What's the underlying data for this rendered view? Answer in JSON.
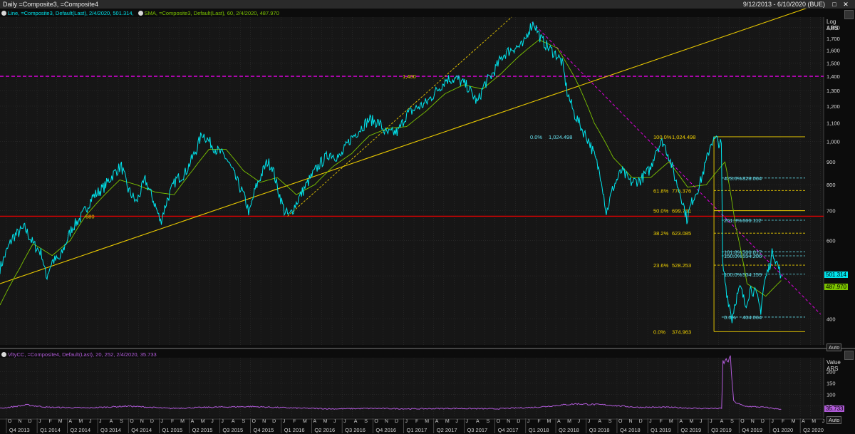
{
  "window": {
    "title": "Daily =Composite3, =Composite4",
    "date_range": "9/12/2013 - 6/10/2020 (BUE)"
  },
  "legend_top": {
    "line": "Line, =Composite3, Default(Last), 2/4/2020, 501.314,",
    "sma": "SMA, =Composite3, Default(Last),  60,  2/4/2020, 487.970"
  },
  "legend_bottom": {
    "vty": "VltyCC, =Composite4, Default(Last), 20, 252, 2/4/2020, 35.733"
  },
  "axes": {
    "top_header": [
      "Log",
      "ARS"
    ],
    "bottom_header": [
      "Value",
      "ARS"
    ],
    "auto_label": "Auto"
  },
  "colors": {
    "price": "#00e5ee",
    "sma": "#7cc400",
    "vty": "#b05ad8",
    "fib": "#f0d000",
    "fib_ext": "#66e0ee",
    "magenta": "#e000e0",
    "red": "#e00000",
    "trend": "#e8c800"
  },
  "chart_data": [
    {
      "type": "line",
      "scale": "log",
      "ylim": [
        350,
        1900
      ],
      "yticks": [
        400,
        500,
        600,
        700,
        800,
        900,
        1000,
        1100,
        1200,
        1300,
        1400,
        1500,
        1600,
        1700,
        1800
      ],
      "ytick_labels": [
        "400",
        "500",
        "600",
        "700",
        "800",
        "900",
        "1,000",
        "1,100",
        "1,200",
        "1,300",
        "1,400",
        "1,500",
        "1,600",
        "1,700",
        "1,800"
      ],
      "x_range": [
        "2013-09-12",
        "2020-06-10"
      ],
      "month_letters": [
        "O",
        "N",
        "D",
        "J",
        "F",
        "M",
        "A",
        "M",
        "J",
        "J",
        "A",
        "S",
        "O",
        "N",
        "D",
        "J",
        "F",
        "M",
        "A",
        "M",
        "J",
        "J",
        "A",
        "S",
        "O",
        "N",
        "D",
        "J",
        "F",
        "M",
        "A",
        "M",
        "J",
        "J",
        "A",
        "S",
        "O",
        "N",
        "D",
        "J",
        "F",
        "M",
        "A",
        "M",
        "J",
        "J",
        "A",
        "S",
        "O",
        "N",
        "D",
        "J",
        "F",
        "M",
        "A",
        "M",
        "J",
        "J",
        "A",
        "S",
        "O",
        "N",
        "D",
        "J",
        "F",
        "M",
        "A",
        "M",
        "J",
        "J",
        "A",
        "S",
        "O",
        "N",
        "D",
        "J",
        "F",
        "M",
        "A",
        "M",
        "J",
        "J",
        "A",
        "S",
        "O",
        "N",
        "D",
        "J",
        "F",
        "M",
        "A",
        "M"
      ],
      "quarter_labels": [
        "Q4 2013",
        "Q1 2014",
        "Q2 2014",
        "Q3 2014",
        "Q4 2014",
        "Q1 2015",
        "Q2 2015",
        "Q3 2015",
        "Q4 2015",
        "Q1 2016",
        "Q2 2016",
        "Q3 2016",
        "Q4 2016",
        "Q1 2017",
        "Q2 2017",
        "Q3 2017",
        "Q4 2017",
        "Q1 2018",
        "Q2 2018",
        "Q3 2018",
        "Q4 2018",
        "Q1 2019",
        "Q2 2019",
        "Q3 2019",
        "Q4 2019",
        "Q1 2020",
        "Q2 2020"
      ],
      "series": [
        {
          "name": "Line",
          "points": [
            [
              "2013-09-12",
              520
            ],
            [
              "2013-10-20",
              610
            ],
            [
              "2013-11-25",
              640
            ],
            [
              "2013-12-20",
              590
            ],
            [
              "2014-01-15",
              560
            ],
            [
              "2014-01-28",
              495
            ],
            [
              "2014-02-15",
              540
            ],
            [
              "2014-03-10",
              545
            ],
            [
              "2014-04-15",
              640
            ],
            [
              "2014-05-15",
              680
            ],
            [
              "2014-06-15",
              750
            ],
            [
              "2014-07-20",
              790
            ],
            [
              "2014-08-25",
              860
            ],
            [
              "2014-09-10",
              880
            ],
            [
              "2014-09-30",
              780
            ],
            [
              "2014-10-25",
              730
            ],
            [
              "2014-11-20",
              820
            ],
            [
              "2014-12-20",
              720
            ],
            [
              "2015-01-05",
              660
            ],
            [
              "2015-01-25",
              740
            ],
            [
              "2015-02-20",
              820
            ],
            [
              "2015-03-20",
              850
            ],
            [
              "2015-04-20",
              950
            ],
            [
              "2015-05-10",
              1045
            ],
            [
              "2015-05-25",
              1010
            ],
            [
              "2015-06-20",
              960
            ],
            [
              "2015-07-20",
              920
            ],
            [
              "2015-08-20",
              820
            ],
            [
              "2015-09-10",
              760
            ],
            [
              "2015-09-28",
              690
            ],
            [
              "2015-10-15",
              780
            ],
            [
              "2015-11-05",
              850
            ],
            [
              "2015-11-20",
              900
            ],
            [
              "2015-12-05",
              880
            ],
            [
              "2015-12-20",
              790
            ],
            [
              "2016-01-10",
              700
            ],
            [
              "2016-01-25",
              680
            ],
            [
              "2016-02-20",
              740
            ],
            [
              "2016-03-25",
              820
            ],
            [
              "2016-04-25",
              890
            ],
            [
              "2016-05-25",
              940
            ],
            [
              "2016-06-25",
              920
            ],
            [
              "2016-07-25",
              1010
            ],
            [
              "2016-08-20",
              1060
            ],
            [
              "2016-09-20",
              1120
            ],
            [
              "2016-10-20",
              1100
            ],
            [
              "2016-11-10",
              1040
            ],
            [
              "2016-12-15",
              1050
            ],
            [
              "2017-01-10",
              1150
            ],
            [
              "2017-02-10",
              1190
            ],
            [
              "2017-03-10",
              1220
            ],
            [
              "2017-04-10",
              1300
            ],
            [
              "2017-05-10",
              1380
            ],
            [
              "2017-06-10",
              1380
            ],
            [
              "2017-07-10",
              1330
            ],
            [
              "2017-08-10",
              1220
            ],
            [
              "2017-08-30",
              1340
            ],
            [
              "2017-09-25",
              1420
            ],
            [
              "2017-10-25",
              1560
            ],
            [
              "2017-11-25",
              1620
            ],
            [
              "2017-12-25",
              1640
            ],
            [
              "2018-01-10",
              1780
            ],
            [
              "2018-01-25",
              1850
            ],
            [
              "2018-02-15",
              1700
            ],
            [
              "2018-03-10",
              1620
            ],
            [
              "2018-04-05",
              1560
            ],
            [
              "2018-04-20",
              1500
            ],
            [
              "2018-05-05",
              1290
            ],
            [
              "2018-05-25",
              1160
            ],
            [
              "2018-06-20",
              1060
            ],
            [
              "2018-07-10",
              1000
            ],
            [
              "2018-07-25",
              930
            ],
            [
              "2018-08-15",
              830
            ],
            [
              "2018-08-30",
              690
            ],
            [
              "2018-09-20",
              790
            ],
            [
              "2018-10-15",
              860
            ],
            [
              "2018-11-10",
              810
            ],
            [
              "2018-12-10",
              820
            ],
            [
              "2019-01-10",
              870
            ],
            [
              "2019-01-25",
              960
            ],
            [
              "2019-02-15",
              1000
            ],
            [
              "2019-03-05",
              930
            ],
            [
              "2019-03-25",
              820
            ],
            [
              "2019-04-10",
              760
            ],
            [
              "2019-04-28",
              670
            ],
            [
              "2019-05-15",
              740
            ],
            [
              "2019-06-05",
              800
            ],
            [
              "2019-06-25",
              900
            ],
            [
              "2019-07-10",
              1000
            ],
            [
              "2019-07-25",
              1010
            ],
            [
              "2019-08-09",
              980
            ],
            [
              "2019-08-13",
              530
            ],
            [
              "2019-08-25",
              460
            ],
            [
              "2019-09-10",
              400
            ],
            [
              "2019-09-20",
              440
            ],
            [
              "2019-10-05",
              470
            ],
            [
              "2019-10-20",
              430
            ],
            [
              "2019-11-05",
              470
            ],
            [
              "2019-11-20",
              455
            ],
            [
              "2019-12-05",
              420
            ],
            [
              "2019-12-15",
              480
            ],
            [
              "2020-01-01",
              530
            ],
            [
              "2020-01-10",
              570
            ],
            [
              "2020-01-20",
              540
            ],
            [
              "2020-02-04",
              501.314
            ]
          ]
        },
        {
          "name": "SMA",
          "points": [
            [
              "2013-09-12",
              430
            ],
            [
              "2013-11-10",
              520
            ],
            [
              "2013-12-20",
              590
            ],
            [
              "2014-02-15",
              555
            ],
            [
              "2014-04-10",
              600
            ],
            [
              "2014-05-25",
              680
            ],
            [
              "2014-07-15",
              750
            ],
            [
              "2014-09-05",
              820
            ],
            [
              "2014-10-25",
              800
            ],
            [
              "2014-12-20",
              770
            ],
            [
              "2015-02-15",
              760
            ],
            [
              "2015-04-10",
              860
            ],
            [
              "2015-05-30",
              960
            ],
            [
              "2015-07-20",
              960
            ],
            [
              "2015-09-10",
              860
            ],
            [
              "2015-10-30",
              810
            ],
            [
              "2015-12-20",
              830
            ],
            [
              "2016-02-15",
              760
            ],
            [
              "2016-04-10",
              800
            ],
            [
              "2016-06-05",
              880
            ],
            [
              "2016-07-30",
              940
            ],
            [
              "2016-09-20",
              1030
            ],
            [
              "2016-11-15",
              1070
            ],
            [
              "2017-01-10",
              1080
            ],
            [
              "2017-03-10",
              1170
            ],
            [
              "2017-05-05",
              1280
            ],
            [
              "2017-06-30",
              1340
            ],
            [
              "2017-08-25",
              1310
            ],
            [
              "2017-10-20",
              1420
            ],
            [
              "2017-12-15",
              1560
            ],
            [
              "2018-02-10",
              1690
            ],
            [
              "2018-04-05",
              1620
            ],
            [
              "2018-05-30",
              1380
            ],
            [
              "2018-07-25",
              1100
            ],
            [
              "2018-09-20",
              920
            ],
            [
              "2018-11-15",
              830
            ],
            [
              "2019-01-10",
              830
            ],
            [
              "2019-03-05",
              900
            ],
            [
              "2019-04-30",
              790
            ],
            [
              "2019-06-25",
              800
            ],
            [
              "2019-08-20",
              900
            ],
            [
              "2019-09-20",
              650
            ],
            [
              "2019-10-25",
              480
            ],
            [
              "2019-12-20",
              450
            ],
            [
              "2020-02-04",
              487.97
            ]
          ]
        }
      ],
      "horizontal_lines": [
        {
          "value": 1400,
          "label": "1,400"
        },
        {
          "value": 680,
          "label": "680"
        }
      ],
      "trend_lines": [
        {
          "from": [
            "2013-09-12",
            480
          ],
          "to": [
            "2020-06-10",
            2050
          ]
        },
        {
          "from": [
            "2016-01-20",
            680
          ],
          "to": [
            "2017-11-20",
            1900
          ]
        },
        {
          "from": [
            "2018-01-20",
            1850
          ],
          "to": [
            "2020-06-01",
            410
          ]
        }
      ],
      "fibonacci": {
        "left": [
          {
            "pct": "0.0%",
            "value": "1,024.498",
            "level": 1024.498
          },
          {
            "pct": "100.0%",
            "value": "1,024.498",
            "level": 1024.498
          },
          {
            "pct": "61.8%",
            "value": "776.376",
            "level": 776.376
          },
          {
            "pct": "50.0%",
            "value": "699.731",
            "level": 699.731
          },
          {
            "pct": "38.2%",
            "value": "623.085",
            "level": 623.085
          },
          {
            "pct": "23.6%",
            "value": "528.253",
            "level": 528.253
          },
          {
            "pct": "0.0%",
            "value": "374.963",
            "level": 374.963
          }
        ],
        "right": [
          {
            "pct": "423.6%",
            "value": "828.064",
            "level": 828.064
          },
          {
            "pct": "261.8%",
            "value": "666.112",
            "level": 666.112
          },
          {
            "pct": "161.8%",
            "value": "566.017",
            "level": 566.017
          },
          {
            "pct": "150.0%",
            "value": "554.206",
            "level": 554.206
          },
          {
            "pct": "100.0%",
            "value": "504.159",
            "level": 504.159
          },
          {
            "pct": "0.0%",
            "value": "404.064",
            "level": 404.064
          }
        ]
      },
      "last_values": {
        "line": "501.314",
        "sma": "487.970"
      }
    },
    {
      "type": "line",
      "ylim": [
        0,
        260
      ],
      "yticks": [
        50,
        100,
        150,
        200
      ],
      "ytick_labels": [
        "50",
        "100",
        "150",
        "200"
      ],
      "series": [
        {
          "name": "VltyCC",
          "points": [
            [
              "2013-09-12",
              40
            ],
            [
              "2013-12-01",
              55
            ],
            [
              "2014-02-01",
              45
            ],
            [
              "2014-06-01",
              42
            ],
            [
              "2014-10-01",
              50
            ],
            [
              "2015-02-01",
              40
            ],
            [
              "2015-06-01",
              45
            ],
            [
              "2015-10-01",
              48
            ],
            [
              "2016-02-01",
              42
            ],
            [
              "2016-06-01",
              38
            ],
            [
              "2016-10-01",
              40
            ],
            [
              "2017-02-01",
              38
            ],
            [
              "2017-06-01",
              40
            ],
            [
              "2017-10-01",
              38
            ],
            [
              "2018-02-01",
              45
            ],
            [
              "2018-06-01",
              60
            ],
            [
              "2018-09-01",
              55
            ],
            [
              "2018-12-01",
              45
            ],
            [
              "2019-03-01",
              45
            ],
            [
              "2019-06-01",
              40
            ],
            [
              "2019-08-10",
              40
            ],
            [
              "2019-08-14",
              240
            ],
            [
              "2019-09-05",
              255
            ],
            [
              "2019-09-15",
              70
            ],
            [
              "2019-10-15",
              50
            ],
            [
              "2019-12-15",
              45
            ],
            [
              "2020-02-04",
              35.733
            ]
          ]
        }
      ],
      "last_value": "35.733"
    }
  ]
}
